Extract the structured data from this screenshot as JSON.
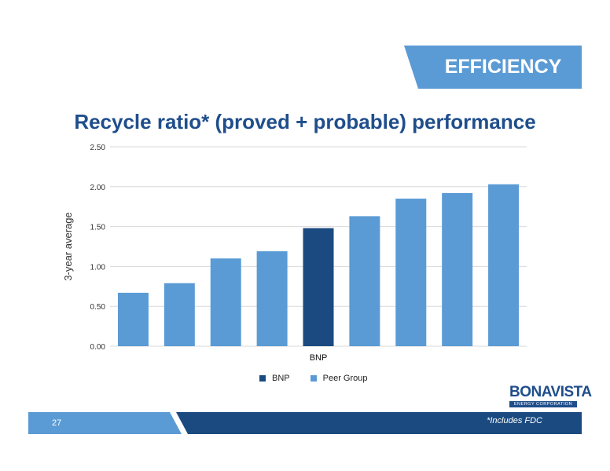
{
  "header": {
    "section_label": "EFFICIENCY"
  },
  "colors": {
    "bnp": "#1b4a80",
    "peer": "#5b9bd5",
    "accent_dark": "#1f4e8c",
    "grid": "#d9d9d9"
  },
  "chart_data": {
    "type": "bar",
    "title": "Recycle ratio* (proved + probable) performance",
    "ylabel": "3-year average",
    "xlabel": "",
    "ylim": [
      0,
      2.5
    ],
    "yticks": [
      "0.00",
      "0.50",
      "1.00",
      "1.50",
      "2.00",
      "2.50"
    ],
    "ytick_values": [
      0,
      0.5,
      1.0,
      1.5,
      2.0,
      2.5
    ],
    "categories": [
      "",
      "",
      "",
      "",
      "BNP",
      "",
      "",
      "",
      ""
    ],
    "values": [
      0.67,
      0.79,
      1.1,
      1.19,
      1.48,
      1.63,
      1.85,
      1.92,
      2.03
    ],
    "groups": [
      "Peer Group",
      "Peer Group",
      "Peer Group",
      "Peer Group",
      "BNP",
      "Peer Group",
      "Peer Group",
      "Peer Group",
      "Peer Group"
    ],
    "grid": true,
    "legend": {
      "placement": "bottom",
      "entries": [
        "BNP",
        "Peer Group"
      ]
    }
  },
  "logo": {
    "name": "BONAVISTA",
    "subtitle": "ENERGY CORPORATION"
  },
  "footer": {
    "page_number": "27",
    "footnote": "*Includes FDC"
  }
}
